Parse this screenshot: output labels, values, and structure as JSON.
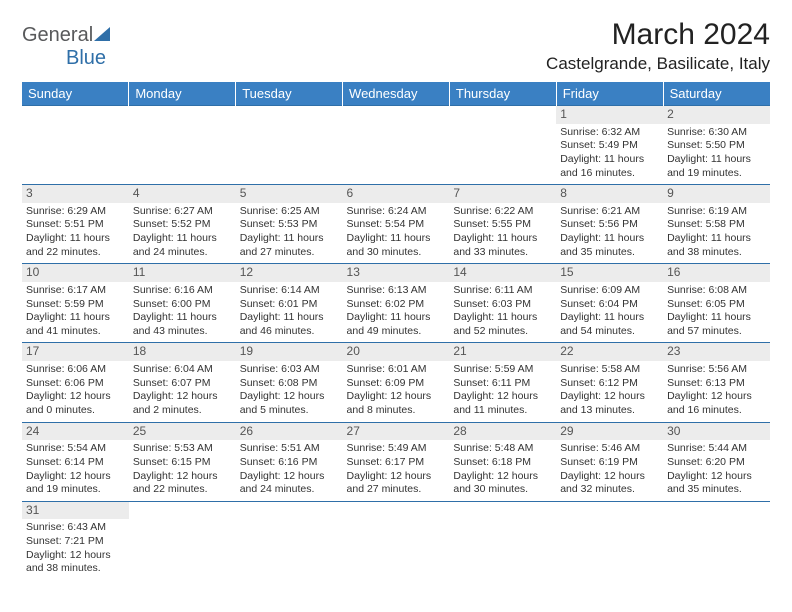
{
  "logo": {
    "part1": "General",
    "part2": "Blue"
  },
  "title": "March 2024",
  "location": "Castelgrande, Basilicate, Italy",
  "colors": {
    "header_bg": "#3a80c3",
    "header_text": "#ffffff",
    "rule": "#2f6fa8",
    "daynum_bg": "#ececec",
    "logo_gray": "#58595b",
    "logo_blue": "#2f6fa8"
  },
  "fonts": {
    "title_pt": 30,
    "location_pt": 17,
    "dayhdr_pt": 13,
    "cell_pt": 10.5
  },
  "day_headers": [
    "Sunday",
    "Monday",
    "Tuesday",
    "Wednesday",
    "Thursday",
    "Friday",
    "Saturday"
  ],
  "weeks": [
    [
      null,
      null,
      null,
      null,
      null,
      {
        "n": "1",
        "sunrise": "6:32 AM",
        "sunset": "5:49 PM",
        "daylight": "11 hours and 16 minutes."
      },
      {
        "n": "2",
        "sunrise": "6:30 AM",
        "sunset": "5:50 PM",
        "daylight": "11 hours and 19 minutes."
      }
    ],
    [
      {
        "n": "3",
        "sunrise": "6:29 AM",
        "sunset": "5:51 PM",
        "daylight": "11 hours and 22 minutes."
      },
      {
        "n": "4",
        "sunrise": "6:27 AM",
        "sunset": "5:52 PM",
        "daylight": "11 hours and 24 minutes."
      },
      {
        "n": "5",
        "sunrise": "6:25 AM",
        "sunset": "5:53 PM",
        "daylight": "11 hours and 27 minutes."
      },
      {
        "n": "6",
        "sunrise": "6:24 AM",
        "sunset": "5:54 PM",
        "daylight": "11 hours and 30 minutes."
      },
      {
        "n": "7",
        "sunrise": "6:22 AM",
        "sunset": "5:55 PM",
        "daylight": "11 hours and 33 minutes."
      },
      {
        "n": "8",
        "sunrise": "6:21 AM",
        "sunset": "5:56 PM",
        "daylight": "11 hours and 35 minutes."
      },
      {
        "n": "9",
        "sunrise": "6:19 AM",
        "sunset": "5:58 PM",
        "daylight": "11 hours and 38 minutes."
      }
    ],
    [
      {
        "n": "10",
        "sunrise": "6:17 AM",
        "sunset": "5:59 PM",
        "daylight": "11 hours and 41 minutes."
      },
      {
        "n": "11",
        "sunrise": "6:16 AM",
        "sunset": "6:00 PM",
        "daylight": "11 hours and 43 minutes."
      },
      {
        "n": "12",
        "sunrise": "6:14 AM",
        "sunset": "6:01 PM",
        "daylight": "11 hours and 46 minutes."
      },
      {
        "n": "13",
        "sunrise": "6:13 AM",
        "sunset": "6:02 PM",
        "daylight": "11 hours and 49 minutes."
      },
      {
        "n": "14",
        "sunrise": "6:11 AM",
        "sunset": "6:03 PM",
        "daylight": "11 hours and 52 minutes."
      },
      {
        "n": "15",
        "sunrise": "6:09 AM",
        "sunset": "6:04 PM",
        "daylight": "11 hours and 54 minutes."
      },
      {
        "n": "16",
        "sunrise": "6:08 AM",
        "sunset": "6:05 PM",
        "daylight": "11 hours and 57 minutes."
      }
    ],
    [
      {
        "n": "17",
        "sunrise": "6:06 AM",
        "sunset": "6:06 PM",
        "daylight": "12 hours and 0 minutes."
      },
      {
        "n": "18",
        "sunrise": "6:04 AM",
        "sunset": "6:07 PM",
        "daylight": "12 hours and 2 minutes."
      },
      {
        "n": "19",
        "sunrise": "6:03 AM",
        "sunset": "6:08 PM",
        "daylight": "12 hours and 5 minutes."
      },
      {
        "n": "20",
        "sunrise": "6:01 AM",
        "sunset": "6:09 PM",
        "daylight": "12 hours and 8 minutes."
      },
      {
        "n": "21",
        "sunrise": "5:59 AM",
        "sunset": "6:11 PM",
        "daylight": "12 hours and 11 minutes."
      },
      {
        "n": "22",
        "sunrise": "5:58 AM",
        "sunset": "6:12 PM",
        "daylight": "12 hours and 13 minutes."
      },
      {
        "n": "23",
        "sunrise": "5:56 AM",
        "sunset": "6:13 PM",
        "daylight": "12 hours and 16 minutes."
      }
    ],
    [
      {
        "n": "24",
        "sunrise": "5:54 AM",
        "sunset": "6:14 PM",
        "daylight": "12 hours and 19 minutes."
      },
      {
        "n": "25",
        "sunrise": "5:53 AM",
        "sunset": "6:15 PM",
        "daylight": "12 hours and 22 minutes."
      },
      {
        "n": "26",
        "sunrise": "5:51 AM",
        "sunset": "6:16 PM",
        "daylight": "12 hours and 24 minutes."
      },
      {
        "n": "27",
        "sunrise": "5:49 AM",
        "sunset": "6:17 PM",
        "daylight": "12 hours and 27 minutes."
      },
      {
        "n": "28",
        "sunrise": "5:48 AM",
        "sunset": "6:18 PM",
        "daylight": "12 hours and 30 minutes."
      },
      {
        "n": "29",
        "sunrise": "5:46 AM",
        "sunset": "6:19 PM",
        "daylight": "12 hours and 32 minutes."
      },
      {
        "n": "30",
        "sunrise": "5:44 AM",
        "sunset": "6:20 PM",
        "daylight": "12 hours and 35 minutes."
      }
    ],
    [
      {
        "n": "31",
        "sunrise": "6:43 AM",
        "sunset": "7:21 PM",
        "daylight": "12 hours and 38 minutes."
      },
      null,
      null,
      null,
      null,
      null,
      null
    ]
  ],
  "labels": {
    "sunrise": "Sunrise:",
    "sunset": "Sunset:",
    "daylight": "Daylight:"
  }
}
